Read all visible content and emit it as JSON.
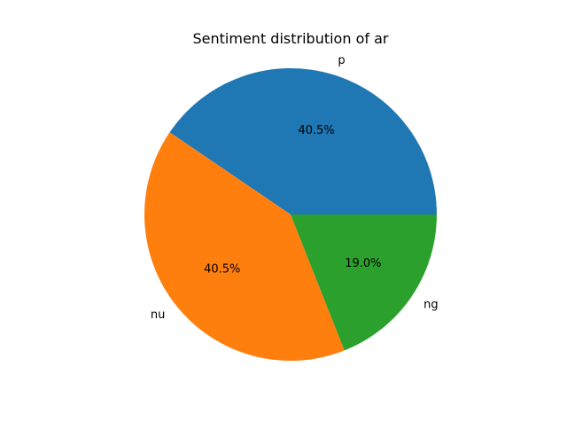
{
  "chart_data": {
    "type": "pie",
    "title": "Sentiment distribution of ar",
    "labels": [
      "p",
      "nu",
      "ng"
    ],
    "values": [
      40.5,
      40.5,
      19.0
    ],
    "percent_labels": [
      "40.5%",
      "40.5%",
      "19.0%"
    ],
    "colors": [
      "#1f77b4",
      "#ff7f0e",
      "#2ca02c"
    ],
    "start_angle_deg": 0,
    "direction": "counterclockwise"
  }
}
